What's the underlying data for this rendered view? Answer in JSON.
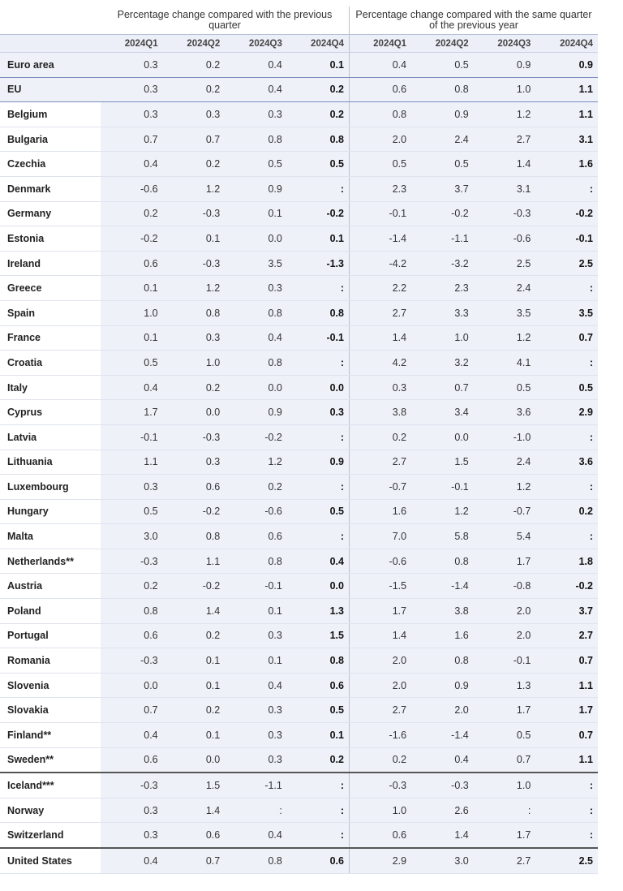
{
  "header": {
    "group_prev_quarter": "Percentage change compared with the previous quarter",
    "group_prev_year": "Percentage change compared with the same quarter of the previous year",
    "quarters": [
      "2024Q1",
      "2024Q2",
      "2024Q3",
      "2024Q4"
    ]
  },
  "rows": [
    {
      "name": "Euro area",
      "v": [
        "0.3",
        "0.2",
        "0.4",
        "0.1",
        "0.4",
        "0.5",
        "0.9",
        "0.9"
      ]
    },
    {
      "name": "EU",
      "v": [
        "0.3",
        "0.2",
        "0.4",
        "0.2",
        "0.6",
        "0.8",
        "1.0",
        "1.1"
      ]
    },
    {
      "name": "Belgium",
      "v": [
        "0.3",
        "0.3",
        "0.3",
        "0.2",
        "0.8",
        "0.9",
        "1.2",
        "1.1"
      ]
    },
    {
      "name": "Bulgaria",
      "v": [
        "0.7",
        "0.7",
        "0.8",
        "0.8",
        "2.0",
        "2.4",
        "2.7",
        "3.1"
      ]
    },
    {
      "name": "Czechia",
      "v": [
        "0.4",
        "0.2",
        "0.5",
        "0.5",
        "0.5",
        "0.5",
        "1.4",
        "1.6"
      ]
    },
    {
      "name": "Denmark",
      "v": [
        "-0.6",
        "1.2",
        "0.9",
        ":",
        "2.3",
        "3.7",
        "3.1",
        ":"
      ]
    },
    {
      "name": "Germany",
      "v": [
        "0.2",
        "-0.3",
        "0.1",
        "-0.2",
        "-0.1",
        "-0.2",
        "-0.3",
        "-0.2"
      ]
    },
    {
      "name": "Estonia",
      "v": [
        "-0.2",
        "0.1",
        "0.0",
        "0.1",
        "-1.4",
        "-1.1",
        "-0.6",
        "-0.1"
      ]
    },
    {
      "name": "Ireland",
      "v": [
        "0.6",
        "-0.3",
        "3.5",
        "-1.3",
        "-4.2",
        "-3.2",
        "2.5",
        "2.5"
      ]
    },
    {
      "name": "Greece",
      "v": [
        "0.1",
        "1.2",
        "0.3",
        ":",
        "2.2",
        "2.3",
        "2.4",
        ":"
      ]
    },
    {
      "name": "Spain",
      "v": [
        "1.0",
        "0.8",
        "0.8",
        "0.8",
        "2.7",
        "3.3",
        "3.5",
        "3.5"
      ]
    },
    {
      "name": "France",
      "v": [
        "0.1",
        "0.3",
        "0.4",
        "-0.1",
        "1.4",
        "1.0",
        "1.2",
        "0.7"
      ]
    },
    {
      "name": "Croatia",
      "v": [
        "0.5",
        "1.0",
        "0.8",
        ":",
        "4.2",
        "3.2",
        "4.1",
        ":"
      ]
    },
    {
      "name": "Italy",
      "v": [
        "0.4",
        "0.2",
        "0.0",
        "0.0",
        "0.3",
        "0.7",
        "0.5",
        "0.5"
      ]
    },
    {
      "name": "Cyprus",
      "v": [
        "1.7",
        "0.0",
        "0.9",
        "0.3",
        "3.8",
        "3.4",
        "3.6",
        "2.9"
      ]
    },
    {
      "name": "Latvia",
      "v": [
        "-0.1",
        "-0.3",
        "-0.2",
        ":",
        "0.2",
        "0.0",
        "-1.0",
        ":"
      ]
    },
    {
      "name": "Lithuania",
      "v": [
        "1.1",
        "0.3",
        "1.2",
        "0.9",
        "2.7",
        "1.5",
        "2.4",
        "3.6"
      ]
    },
    {
      "name": "Luxembourg",
      "v": [
        "0.3",
        "0.6",
        "0.2",
        ":",
        "-0.7",
        "-0.1",
        "1.2",
        ":"
      ]
    },
    {
      "name": "Hungary",
      "v": [
        "0.5",
        "-0.2",
        "-0.6",
        "0.5",
        "1.6",
        "1.2",
        "-0.7",
        "0.2"
      ]
    },
    {
      "name": "Malta",
      "v": [
        "3.0",
        "0.8",
        "0.6",
        ":",
        "7.0",
        "5.8",
        "5.4",
        ":"
      ]
    },
    {
      "name": "Netherlands**",
      "v": [
        "-0.3",
        "1.1",
        "0.8",
        "0.4",
        "-0.6",
        "0.8",
        "1.7",
        "1.8"
      ]
    },
    {
      "name": "Austria",
      "v": [
        "0.2",
        "-0.2",
        "-0.1",
        "0.0",
        "-1.5",
        "-1.4",
        "-0.8",
        "-0.2"
      ]
    },
    {
      "name": "Poland",
      "v": [
        "0.8",
        "1.4",
        "0.1",
        "1.3",
        "1.7",
        "3.8",
        "2.0",
        "3.7"
      ]
    },
    {
      "name": "Portugal",
      "v": [
        "0.6",
        "0.2",
        "0.3",
        "1.5",
        "1.4",
        "1.6",
        "2.0",
        "2.7"
      ]
    },
    {
      "name": "Romania",
      "v": [
        "-0.3",
        "0.1",
        "0.1",
        "0.8",
        "2.0",
        "0.8",
        "-0.1",
        "0.7"
      ]
    },
    {
      "name": "Slovenia",
      "v": [
        "0.0",
        "0.1",
        "0.4",
        "0.6",
        "2.0",
        "0.9",
        "1.3",
        "1.1"
      ]
    },
    {
      "name": "Slovakia",
      "v": [
        "0.7",
        "0.2",
        "0.3",
        "0.5",
        "2.7",
        "2.0",
        "1.7",
        "1.7"
      ]
    },
    {
      "name": "Finland**",
      "v": [
        "0.4",
        "0.1",
        "0.3",
        "0.1",
        "-1.6",
        "-1.4",
        "0.5",
        "0.7"
      ]
    },
    {
      "name": "Sweden**",
      "v": [
        "0.6",
        "0.0",
        "0.3",
        "0.2",
        "0.2",
        "0.4",
        "0.7",
        "1.1"
      ]
    },
    {
      "name": "Iceland***",
      "v": [
        "-0.3",
        "1.5",
        "-1.1",
        ":",
        "-0.3",
        "-0.3",
        "1.0",
        ":"
      ]
    },
    {
      "name": "Norway",
      "v": [
        "0.3",
        "1.4",
        ":",
        ":",
        "1.0",
        "2.6",
        ":",
        ":"
      ]
    },
    {
      "name": "Switzerland",
      "v": [
        "0.3",
        "0.6",
        "0.4",
        ":",
        "0.6",
        "1.4",
        "1.7",
        ":"
      ]
    },
    {
      "name": "United States",
      "v": [
        "0.4",
        "0.7",
        "0.8",
        "0.6",
        "2.9",
        "3.0",
        "2.7",
        "2.5"
      ]
    }
  ]
}
